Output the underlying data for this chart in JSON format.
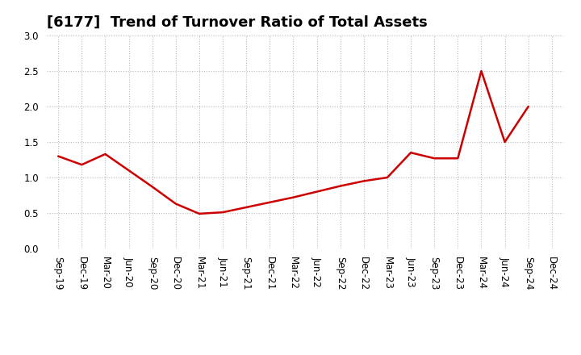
{
  "title": "[6177]  Trend of Turnover Ratio of Total Assets",
  "x_labels": [
    "Sep-19",
    "Dec-19",
    "Mar-20",
    "Jun-20",
    "Sep-20",
    "Dec-20",
    "Mar-21",
    "Jun-21",
    "Sep-21",
    "Dec-21",
    "Mar-22",
    "Jun-22",
    "Sep-22",
    "Dec-22",
    "Mar-23",
    "Jun-23",
    "Sep-23",
    "Dec-23",
    "Mar-24",
    "Jun-24",
    "Sep-24",
    "Dec-24"
  ],
  "values": [
    1.3,
    1.18,
    1.33,
    1.1,
    0.87,
    0.63,
    0.49,
    0.51,
    0.58,
    0.65,
    0.72,
    0.8,
    0.88,
    0.95,
    1.0,
    1.35,
    1.27,
    1.27,
    2.5,
    1.5,
    2.0,
    null
  ],
  "line_color": "#cc0000",
  "background_color": "#ffffff",
  "plot_bg_color": "#ffffff",
  "ylim": [
    0.0,
    3.0
  ],
  "yticks": [
    0.0,
    0.5,
    1.0,
    1.5,
    2.0,
    2.5,
    3.0
  ],
  "grid_color": "#bbbbbb",
  "title_fontsize": 13,
  "tick_fontsize": 8.5,
  "line_width": 1.8
}
